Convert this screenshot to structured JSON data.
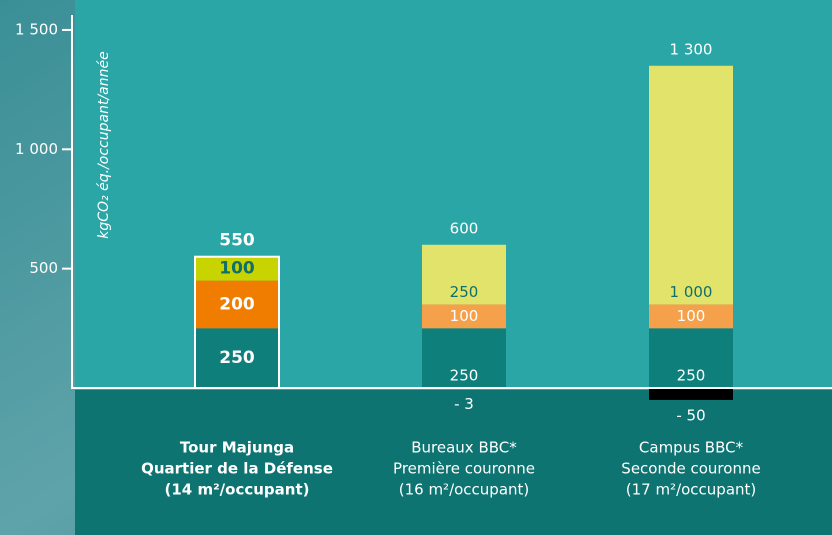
{
  "chart_data": {
    "type": "stacked-bar",
    "y_label": "kgCO₂ éq./occupant/année",
    "categories": [
      [
        "Tour Majunga",
        "Quartier de la Défense",
        "(14 m²/occupant)"
      ],
      [
        "Bureaux BBC*",
        "Première couronne",
        "(16 m²/occupant)"
      ],
      [
        "Campus BBC*",
        "Seconde couronne",
        "(17 m²/occupant)"
      ]
    ],
    "highlight": 0,
    "series": [
      {
        "values": [
          250,
          250,
          250
        ],
        "colors": [
          "#0f7f7b",
          "#0f7f7b",
          "#0f7f7b"
        ],
        "label_color": "#ffffff"
      },
      {
        "values": [
          200,
          100,
          100
        ],
        "colors": [
          "#f07d00",
          "#f5a04a",
          "#f5a04a"
        ],
        "label_color": "#ffffff"
      },
      {
        "values": [
          100,
          250,
          1000
        ],
        "value_labels": [
          "100",
          "250",
          "1 000"
        ],
        "colors": [
          "#c8d400",
          "#e2e36a",
          "#e2e36a"
        ],
        "label_color": "#0f6f6c"
      },
      {
        "values": [
          null,
          -3,
          -50
        ],
        "value_labels": [
          null,
          "- 3",
          "- 50"
        ],
        "colors": [
          "#000000",
          "#000000",
          "#000000"
        ],
        "label_color": "#ffffff"
      }
    ],
    "totals": [
      550,
      600,
      1300
    ],
    "totals_labels": [
      "550",
      "600",
      "1 300"
    ],
    "ylim": [
      -50,
      1500
    ],
    "yticks": [
      {
        "value": 500,
        "label": "500"
      },
      {
        "value": 1000,
        "label": "1 000"
      },
      {
        "value": 1500,
        "label": "1 500"
      }
    ]
  }
}
